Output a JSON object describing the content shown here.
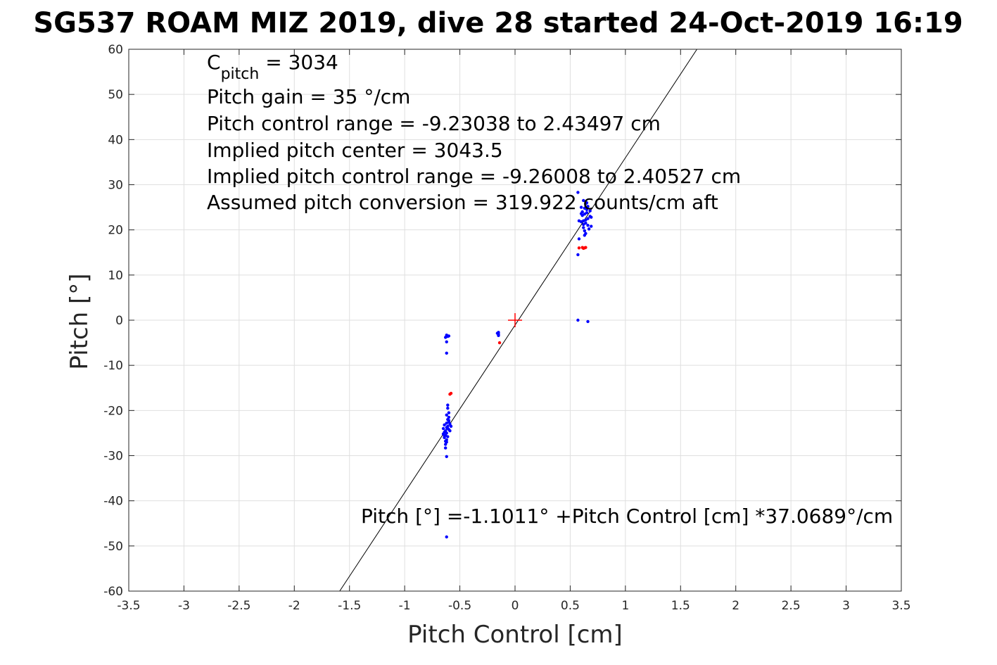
{
  "chart_data": {
    "type": "scatter",
    "title": "SG537 ROAM MIZ 2019, dive 28 started 24-Oct-2019 16:19",
    "xlabel": "Pitch Control [cm]",
    "ylabel": "Pitch [°]",
    "xlim": [
      -3.5,
      3.5
    ],
    "ylim": [
      -60,
      60
    ],
    "xticks": [
      -3.5,
      -3,
      -2.5,
      -2,
      -1.5,
      -1,
      -0.5,
      0,
      0.5,
      1,
      1.5,
      2,
      2.5,
      3,
      3.5
    ],
    "xtick_labels": [
      "-3.5",
      "-3",
      "-2.5",
      "-2",
      "-1.5",
      "-1",
      "-0.5",
      "0",
      "0.5",
      "1",
      "1.5",
      "2",
      "2.5",
      "3",
      "3.5"
    ],
    "yticks": [
      60,
      50,
      40,
      30,
      20,
      10,
      0,
      -10,
      -20,
      -30,
      -40,
      -50,
      -60
    ],
    "ytick_labels": [
      "60",
      "50",
      "40",
      "30",
      "20",
      "10",
      "0",
      "-10",
      "-20",
      "-30",
      "-40",
      "-50",
      "-60"
    ],
    "grid": true,
    "annotations": {
      "c_pitch_prefix": "C",
      "c_pitch_sub": "pitch",
      "c_pitch_value": " = 3034",
      "pitch_gain": "Pitch gain = 35 °/cm",
      "pitch_control_range": "Pitch control range = -9.23038 to 2.43497 cm",
      "implied_center": "Implied pitch center = 3043.5",
      "implied_range": "Implied pitch control range = -9.26008 to 2.40527 cm",
      "assumed_conversion": "Assumed pitch conversion = 319.922 counts/cm aft",
      "fit_equation": "Pitch [°] =-1.1011° +Pitch Control [cm] *37.0689°/cm"
    },
    "fit_line": {
      "name": "linear fit",
      "intercept": -1.1011,
      "slope": 37.0689,
      "color": "#000000"
    },
    "center_marker": {
      "name": "pitch center",
      "x": 0,
      "y": 0,
      "color": "#ff0000"
    },
    "series": [
      {
        "name": "used points",
        "color": "#0000ff",
        "points": [
          [
            -0.63,
            -24.5
          ],
          [
            -0.62,
            -25.0
          ],
          [
            -0.61,
            -23.5
          ],
          [
            -0.64,
            -26.0
          ],
          [
            -0.6,
            -22.5
          ],
          [
            -0.62,
            -27.0
          ],
          [
            -0.63,
            -25.5
          ],
          [
            -0.61,
            -24.0
          ],
          [
            -0.59,
            -23.0
          ],
          [
            -0.6,
            -21.5
          ],
          [
            -0.62,
            -26.5
          ],
          [
            -0.64,
            -24.8
          ],
          [
            -0.65,
            -25.2
          ],
          [
            -0.61,
            -22.0
          ],
          [
            -0.6,
            -20.5
          ],
          [
            -0.62,
            -23.8
          ],
          [
            -0.63,
            -26.8
          ],
          [
            -0.64,
            -23.2
          ],
          [
            -0.59,
            -24.5
          ],
          [
            -0.61,
            -25.8
          ],
          [
            -0.62,
            -22.8
          ],
          [
            -0.6,
            -24.2
          ],
          [
            -0.63,
            -27.5
          ],
          [
            -0.65,
            -24.0
          ],
          [
            -0.58,
            -23.5
          ],
          [
            -0.62,
            -21.0
          ],
          [
            -0.61,
            -19.5
          ],
          [
            -0.61,
            -18.8
          ],
          [
            -0.63,
            -28.3
          ],
          [
            -0.62,
            -30.2
          ],
          [
            -0.6,
            -22.2
          ],
          [
            -0.64,
            -25.6
          ],
          [
            -0.62,
            -3.3
          ],
          [
            -0.61,
            -3.6
          ],
          [
            -0.6,
            -3.5
          ],
          [
            -0.63,
            -3.8
          ],
          [
            -0.62,
            -4.8
          ],
          [
            -0.62,
            -7.3
          ],
          [
            -0.62,
            -48.0
          ],
          [
            -0.15,
            -2.7
          ],
          [
            -0.15,
            -3.1
          ],
          [
            -0.15,
            -3.4
          ],
          [
            -0.16,
            -2.9
          ],
          [
            0.62,
            22.0
          ],
          [
            0.63,
            23.5
          ],
          [
            0.64,
            21.5
          ],
          [
            0.65,
            24.5
          ],
          [
            0.6,
            25.0
          ],
          [
            0.62,
            20.5
          ],
          [
            0.66,
            22.5
          ],
          [
            0.68,
            23.0
          ],
          [
            0.63,
            19.8
          ],
          [
            0.61,
            24.0
          ],
          [
            0.64,
            25.8
          ],
          [
            0.66,
            21.0
          ],
          [
            0.69,
            22.8
          ],
          [
            0.62,
            26.5
          ],
          [
            0.63,
            18.8
          ],
          [
            0.6,
            21.8
          ],
          [
            0.65,
            23.8
          ],
          [
            0.67,
            20.2
          ],
          [
            0.64,
            22.2
          ],
          [
            0.61,
            23.2
          ],
          [
            0.63,
            24.8
          ],
          [
            0.66,
            25.2
          ],
          [
            0.62,
            21.2
          ],
          [
            0.68,
            24.2
          ],
          [
            0.69,
            20.8
          ],
          [
            0.64,
            19.2
          ],
          [
            0.6,
            23.6
          ],
          [
            0.65,
            26.0
          ],
          [
            0.57,
            28.3
          ],
          [
            0.58,
            18.0
          ],
          [
            0.57,
            14.5
          ],
          [
            0.58,
            22.0
          ],
          [
            0.57,
            0.0
          ],
          [
            0.66,
            -0.3
          ]
        ]
      },
      {
        "name": "excluded points",
        "color": "#ff0000",
        "points": [
          [
            -0.58,
            -16.2
          ],
          [
            -0.59,
            -16.4
          ],
          [
            -0.14,
            -5.0
          ],
          [
            0.58,
            16.0
          ],
          [
            0.61,
            16.1
          ],
          [
            0.62,
            15.9
          ],
          [
            0.63,
            16.0
          ],
          [
            0.64,
            16.1
          ]
        ]
      }
    ]
  }
}
